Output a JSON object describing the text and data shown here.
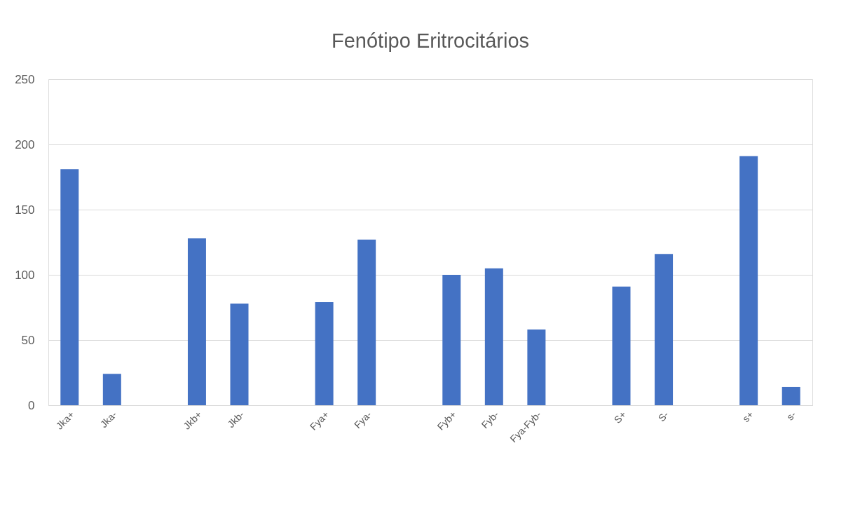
{
  "chart_data": {
    "type": "bar",
    "title": "Fenótipo Eritrocitários",
    "categories": [
      "Jka+",
      "Jka-",
      null,
      "Jkb+",
      "Jkb-",
      null,
      "Fya+",
      "Fya-",
      null,
      "Fyb+",
      "Fyb-",
      "Fya-Fyb-",
      null,
      "S+",
      "S-",
      null,
      "s+",
      "s-"
    ],
    "values": [
      181,
      24,
      null,
      128,
      78,
      null,
      79,
      127,
      null,
      100,
      105,
      58,
      null,
      91,
      116,
      null,
      191,
      14
    ],
    "color": "#4472c4",
    "ylim": [
      0,
      250
    ],
    "yticks": [
      0,
      50,
      100,
      150,
      200,
      250
    ],
    "grid": "y"
  }
}
